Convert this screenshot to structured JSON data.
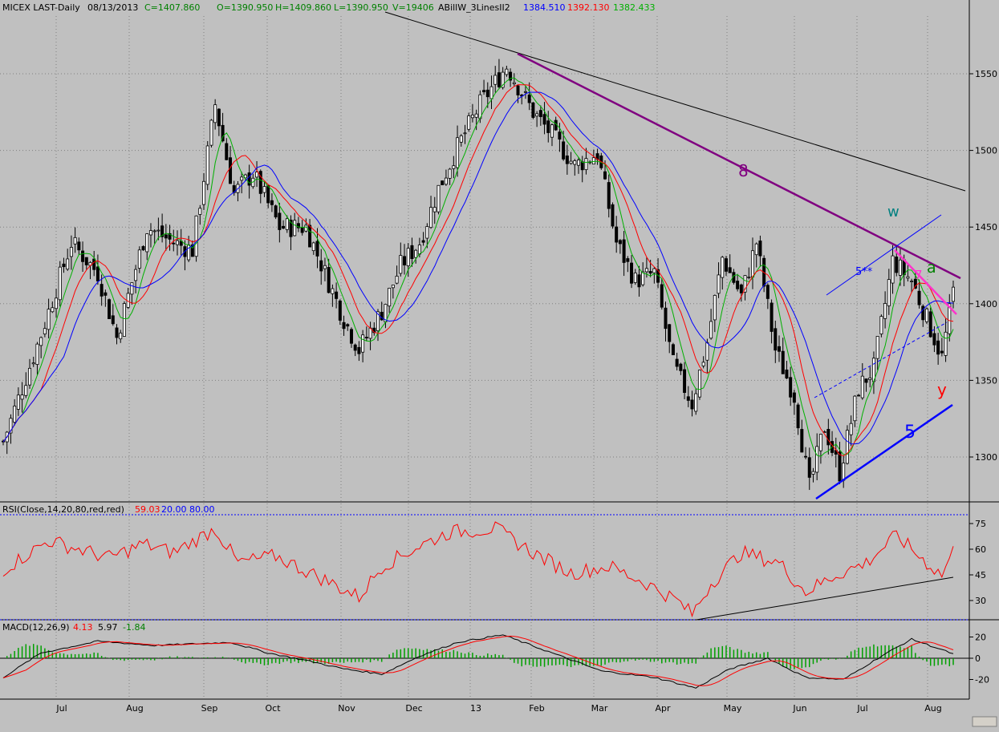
{
  "colors": {
    "background": "#c0c0c0",
    "candle": "#000000",
    "ma_fast": "#00b000",
    "ma_mid": "#ff0000",
    "ma_slow": "#0000ff",
    "trend_purple": "#800080",
    "trend_magenta": "#ff33cc",
    "trend_blue": "#0000ff",
    "rsi": "#ff0000",
    "macd": "#000000",
    "signal": "#ff0000",
    "hist": "#00a000"
  },
  "header": {
    "symbol": "MICEX LAST-Daily",
    "date": "08/13/2013",
    "close": "C=1407.860",
    "open": "O=1390.950",
    "high": "H=1409.860",
    "low": "L=1390.950",
    "volume": "V=19406",
    "indicator": "ABillW_3LinesII2",
    "ind_blue": "1384.510",
    "ind_red": "1392.130",
    "ind_green": "1382.433"
  },
  "rsi_header": {
    "label": "RSI(Close,14,20,80,red,red)",
    "value": "59.03",
    "low": "20.00",
    "high": "80.00"
  },
  "macd_header": {
    "label": "MACD(12,26,9)",
    "macd": "4.13",
    "signal": "5.97",
    "hist": "-1.84"
  },
  "annotations": {
    "eight": "8",
    "w": "w",
    "a": "a",
    "five_star": "5**",
    "seven": "7",
    "y": "y",
    "five": "5"
  },
  "chart_data": [
    {
      "type": "candlestick",
      "price_ticks": [
        "1550",
        "1500",
        "1450",
        "1400",
        "1350",
        "1300"
      ],
      "months": [
        "Jul",
        "Aug",
        "Sep",
        "Oct",
        "Nov",
        "Dec",
        "13",
        "Feb",
        "Mar",
        "Apr",
        "May",
        "Jun",
        "Jul",
        "Aug"
      ],
      "ylim": [
        1262,
        1580
      ],
      "anchors": [
        {
          "day": 0,
          "value": 1310
        },
        {
          "day": 10,
          "value": 1380
        },
        {
          "day": 18,
          "value": 1440
        },
        {
          "day": 25,
          "value": 1420
        },
        {
          "day": 30,
          "value": 1378
        },
        {
          "day": 38,
          "value": 1450
        },
        {
          "day": 45,
          "value": 1440
        },
        {
          "day": 50,
          "value": 1435
        },
        {
          "day": 56,
          "value": 1530
        },
        {
          "day": 61,
          "value": 1472
        },
        {
          "day": 66,
          "value": 1485
        },
        {
          "day": 73,
          "value": 1450
        },
        {
          "day": 80,
          "value": 1450
        },
        {
          "day": 85,
          "value": 1420
        },
        {
          "day": 90,
          "value": 1390
        },
        {
          "day": 94,
          "value": 1370
        },
        {
          "day": 100,
          "value": 1395
        },
        {
          "day": 105,
          "value": 1425
        },
        {
          "day": 110,
          "value": 1440
        },
        {
          "day": 115,
          "value": 1475
        },
        {
          "day": 120,
          "value": 1502
        },
        {
          "day": 126,
          "value": 1530
        },
        {
          "day": 133,
          "value": 1555
        },
        {
          "day": 140,
          "value": 1525
        },
        {
          "day": 145,
          "value": 1510
        },
        {
          "day": 151,
          "value": 1490
        },
        {
          "day": 157,
          "value": 1498
        },
        {
          "day": 162,
          "value": 1440
        },
        {
          "day": 167,
          "value": 1415
        },
        {
          "day": 172,
          "value": 1420
        },
        {
          "day": 177,
          "value": 1360
        },
        {
          "day": 182,
          "value": 1335
        },
        {
          "day": 186,
          "value": 1375
        },
        {
          "day": 190,
          "value": 1430
        },
        {
          "day": 195,
          "value": 1405
        },
        {
          "day": 199,
          "value": 1440
        },
        {
          "day": 204,
          "value": 1370
        },
        {
          "day": 209,
          "value": 1340
        },
        {
          "day": 213,
          "value": 1280
        },
        {
          "day": 217,
          "value": 1320
        },
        {
          "day": 221,
          "value": 1290
        },
        {
          "day": 226,
          "value": 1345
        },
        {
          "day": 230,
          "value": 1358
        },
        {
          "day": 235,
          "value": 1428
        },
        {
          "day": 240,
          "value": 1415
        },
        {
          "day": 244,
          "value": 1390
        },
        {
          "day": 248,
          "value": 1365
        },
        {
          "day": 251,
          "value": 1408
        }
      ]
    },
    {
      "type": "line",
      "name": "RSI",
      "ticks": [
        "75",
        "60",
        "45",
        "30"
      ],
      "ylim": [
        18,
        84
      ],
      "anchors": [
        {
          "day": 0,
          "value": 48
        },
        {
          "day": 12,
          "value": 65
        },
        {
          "day": 28,
          "value": 55
        },
        {
          "day": 37,
          "value": 63
        },
        {
          "day": 45,
          "value": 58
        },
        {
          "day": 56,
          "value": 72
        },
        {
          "day": 62,
          "value": 52
        },
        {
          "day": 72,
          "value": 56
        },
        {
          "day": 85,
          "value": 42
        },
        {
          "day": 94,
          "value": 32
        },
        {
          "day": 100,
          "value": 50
        },
        {
          "day": 110,
          "value": 62
        },
        {
          "day": 118,
          "value": 70
        },
        {
          "day": 130,
          "value": 72
        },
        {
          "day": 140,
          "value": 58
        },
        {
          "day": 150,
          "value": 46
        },
        {
          "day": 160,
          "value": 50
        },
        {
          "day": 170,
          "value": 40
        },
        {
          "day": 178,
          "value": 30
        },
        {
          "day": 182,
          "value": 22
        },
        {
          "day": 187,
          "value": 40
        },
        {
          "day": 195,
          "value": 58
        },
        {
          "day": 205,
          "value": 52
        },
        {
          "day": 212,
          "value": 35
        },
        {
          "day": 220,
          "value": 45
        },
        {
          "day": 228,
          "value": 52
        },
        {
          "day": 236,
          "value": 68
        },
        {
          "day": 244,
          "value": 52
        },
        {
          "day": 248,
          "value": 45
        },
        {
          "day": 251,
          "value": 59
        }
      ]
    },
    {
      "type": "line",
      "name": "MACD",
      "ticks": [
        "20",
        "0",
        "-20"
      ],
      "ylim": [
        -37,
        28
      ],
      "anchors": [
        {
          "day": 0,
          "value": -18
        },
        {
          "day": 10,
          "value": 5
        },
        {
          "day": 25,
          "value": 16
        },
        {
          "day": 40,
          "value": 12
        },
        {
          "day": 60,
          "value": 15
        },
        {
          "day": 70,
          "value": 5
        },
        {
          "day": 80,
          "value": -2
        },
        {
          "day": 90,
          "value": -10
        },
        {
          "day": 100,
          "value": -15
        },
        {
          "day": 110,
          "value": 2
        },
        {
          "day": 120,
          "value": 15
        },
        {
          "day": 132,
          "value": 22
        },
        {
          "day": 145,
          "value": 5
        },
        {
          "day": 158,
          "value": -12
        },
        {
          "day": 172,
          "value": -18
        },
        {
          "day": 183,
          "value": -28
        },
        {
          "day": 192,
          "value": -10
        },
        {
          "day": 202,
          "value": 0
        },
        {
          "day": 212,
          "value": -18
        },
        {
          "day": 222,
          "value": -20
        },
        {
          "day": 232,
          "value": 2
        },
        {
          "day": 240,
          "value": 18
        },
        {
          "day": 248,
          "value": 8
        },
        {
          "day": 251,
          "value": 4
        }
      ]
    }
  ]
}
